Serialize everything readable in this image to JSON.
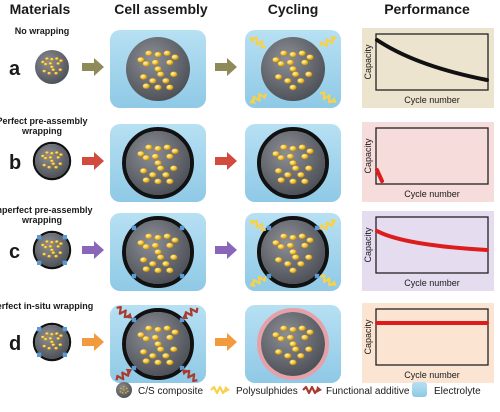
{
  "headers": {
    "materials": "Materials",
    "cell_assembly": "Cell assembly",
    "cycling": "Cycling",
    "performance": "Performance"
  },
  "rows": [
    {
      "letter": "a",
      "subtitle": [
        "No wrapping"
      ],
      "arrow_color": "#8f8a5a",
      "performance_bg": "#ece4cf",
      "curve_color": "#111111"
    },
    {
      "letter": "b",
      "subtitle": [
        "Perfect pre-assembly",
        "wrapping"
      ],
      "arrow_color": "#d24b3e",
      "performance_bg": "#f7dcdc",
      "curve_color": "#dd1c1c"
    },
    {
      "letter": "c",
      "subtitle": [
        "Imperfect pre-assembly",
        "wrapping"
      ],
      "arrow_color": "#8a66b8",
      "performance_bg": "#e6dcf0",
      "curve_color": "#dd1c1c"
    },
    {
      "letter": "d",
      "subtitle": [
        "Perfect in-situ wrapping"
      ],
      "arrow_color": "#f19a3e",
      "performance_bg": "#fbe5d2",
      "curve_color": "#dd1c1c"
    }
  ],
  "axes": {
    "ylabel": "Capacity",
    "xlabel": "Cycle number"
  },
  "legend": [
    {
      "icon": "cs-composite-icon",
      "label": "C/S composite"
    },
    {
      "icon": "polysulphide-icon",
      "label": "Polysulphides"
    },
    {
      "icon": "functional-additive-icon",
      "label": "Functional additive"
    },
    {
      "icon": "electrolyte-icon",
      "label": "Electrolyte"
    }
  ],
  "colors": {
    "electrolyte": "#9fd3ec",
    "particle": "#6f7378",
    "sulfur": "#f3c637",
    "polysulphide": "#f6d24a",
    "additive": "#a93b2f",
    "wrap_black": "#111111",
    "wrap_blue": "#5b9bd5",
    "wrap_pink": "#e8a0a8"
  }
}
